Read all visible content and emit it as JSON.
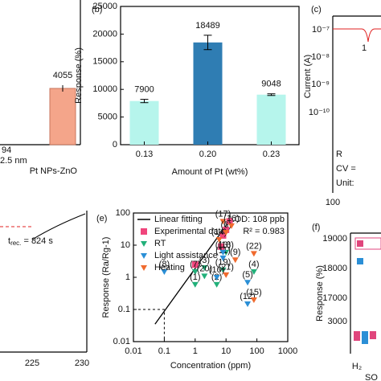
{
  "chart_data": [
    {
      "type": "bar",
      "panel": "(b)",
      "categories": [
        "0.13",
        "0.20",
        "0.23"
      ],
      "values": [
        7900,
        18489,
        9048
      ],
      "errors": [
        300,
        1300,
        150
      ],
      "colors": [
        "#b6f5ec",
        "#2f7db3",
        "#b6f5ec"
      ],
      "ylim": [
        0,
        25000
      ],
      "yticks": [
        0,
        5000,
        10000,
        15000,
        20000,
        25000
      ],
      "y_label": "Response (%)",
      "x_label": "Amount of Pt (wt%)"
    },
    {
      "type": "scatter",
      "panel": "(e)",
      "xscale": "log",
      "yscale": "log",
      "xlim": [
        0.01,
        1000
      ],
      "ylim": [
        0.01,
        100
      ],
      "xticks": [
        0.01,
        0.1,
        1,
        10,
        100,
        1000
      ],
      "yticks": [
        0.01,
        0.1,
        1,
        10,
        100
      ],
      "x_label": "Concentration (ppm)",
      "y_label": "Response (Ra/Rg-1)",
      "annotations": [
        "LOD: 108 ppb",
        "R² = 0.983"
      ],
      "lod_guide": [
        0.1,
        0.1
      ],
      "series": [
        {
          "name": "Linear fitting",
          "marker": "line",
          "color": "#000000",
          "x": [
            0.05,
            15
          ],
          "values": [
            0.035,
            70
          ]
        },
        {
          "name": "Experimental data",
          "marker": "square",
          "color": "#f0457c",
          "x": [
            1,
            7,
            8,
            10,
            13
          ],
          "values": [
            2.5,
            9,
            20,
            30,
            55
          ]
        },
        {
          "name": "RT",
          "marker": "triangle",
          "color": "#22b07a",
          "x": [
            1,
            1,
            2,
            2,
            5,
            8,
            80,
            10
          ],
          "values": [
            1.5,
            0.6,
            2,
            1.1,
            0.6,
            1.7,
            1.5,
            6
          ],
          "point_labels": [
            "(7)",
            "(1)",
            "(3)",
            "(20)",
            "(2)",
            "(19)",
            "(4)",
            "(18)"
          ]
        },
        {
          "name": "Light assistance",
          "marker": "triangle",
          "color": "#2b8fd6",
          "x": [
            0.1,
            8,
            5,
            50,
            50,
            8
          ],
          "values": [
            1.5,
            4,
            1,
            0.15,
            0.7,
            6
          ],
          "point_labels": [
            "(8)",
            "(11)",
            "(10)",
            "(12)",
            "(5)",
            "(13)"
          ]
        },
        {
          "name": "Heating",
          "marker": "triangle",
          "color": "#f06a2e",
          "x": [
            8,
            6,
            10,
            20,
            80,
            80,
            10,
            15
          ],
          "values": [
            55,
            15,
            1.2,
            3.5,
            5.5,
            0.2,
            25,
            40
          ],
          "point_labels": [
            "(17)",
            "(14)",
            "(21)",
            "(9)",
            "(22)",
            "(15)",
            "(6)",
            "(16)"
          ]
        }
      ]
    }
  ],
  "fragments": [
    "94",
    "4055",
    "2.5 nm",
    "Pt NPs-ZnO",
    "(c)",
    "10⁻⁷",
    "10⁻⁸",
    "10⁻⁹",
    "10⁻¹⁰",
    "Current (A)",
    "1",
    "R",
    "CV =",
    "Unit:",
    "100",
    "t",
    "225",
    "230",
    "(f)",
    "19000",
    "18000",
    "17000",
    "3000",
    "Response (%)",
    "H₂",
    "SO"
  ]
}
